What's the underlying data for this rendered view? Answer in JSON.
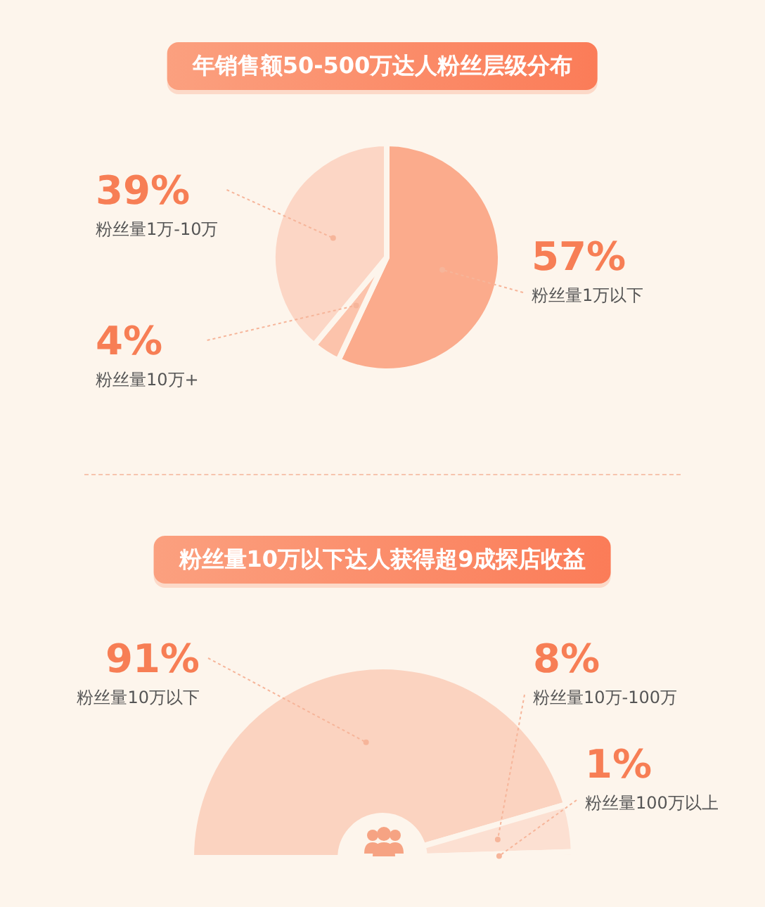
{
  "chart_data": [
    {
      "type": "pie",
      "title": "年销售额50-500万达人粉丝层级分布",
      "categories": [
        "粉丝量1万以下",
        "粉丝量10万+",
        "粉丝量1万-10万"
      ],
      "values": [
        57,
        4,
        39
      ],
      "value_labels": [
        "57%",
        "4%",
        "39%"
      ],
      "colors": [
        "#fbab8c",
        "#fcc3ab",
        "#fcd6c5"
      ]
    },
    {
      "type": "donut",
      "title": "粉丝量10万以下达人获得超9成探店收益",
      "categories": [
        "粉丝量10万以下",
        "粉丝量10万-100万",
        "粉丝量100万以上"
      ],
      "values": [
        91,
        8,
        1
      ],
      "value_labels": [
        "91%",
        "8%",
        "1%"
      ],
      "colors": [
        "#fbd3c0",
        "#fce0d2",
        "#fdeae0"
      ]
    }
  ]
}
